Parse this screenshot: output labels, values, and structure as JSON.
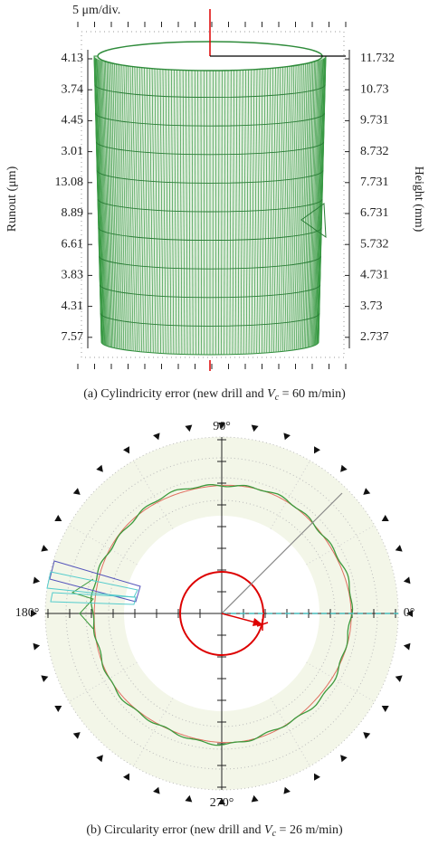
{
  "panel_a": {
    "scale_label": "5 μm/div.",
    "left_axis_title": "Runout (μm)",
    "right_axis_title": "Height (mm)",
    "left_labels": [
      "4.13",
      "3.74",
      "4.45",
      "3.01",
      "13.08",
      "8.89",
      "6.61",
      "3.83",
      "4.31",
      "7.57"
    ],
    "right_labels": [
      "11.732",
      "10.73",
      "9.731",
      "8.732",
      "7.731",
      "6.731",
      "5.732",
      "4.731",
      "3.73",
      "2.737"
    ],
    "caption": [
      "(a)  Cylindricity error (new drill and ",
      "V",
      "c",
      "  = 60 m/min)"
    ]
  },
  "panel_b": {
    "angle_labels": {
      "top": "90°",
      "left": "180°",
      "right": "0°",
      "bottom": "270°"
    },
    "caption": [
      "(b)  Circularity error (new drill and ",
      "V",
      "c",
      "  = 26 m/min)"
    ]
  }
}
